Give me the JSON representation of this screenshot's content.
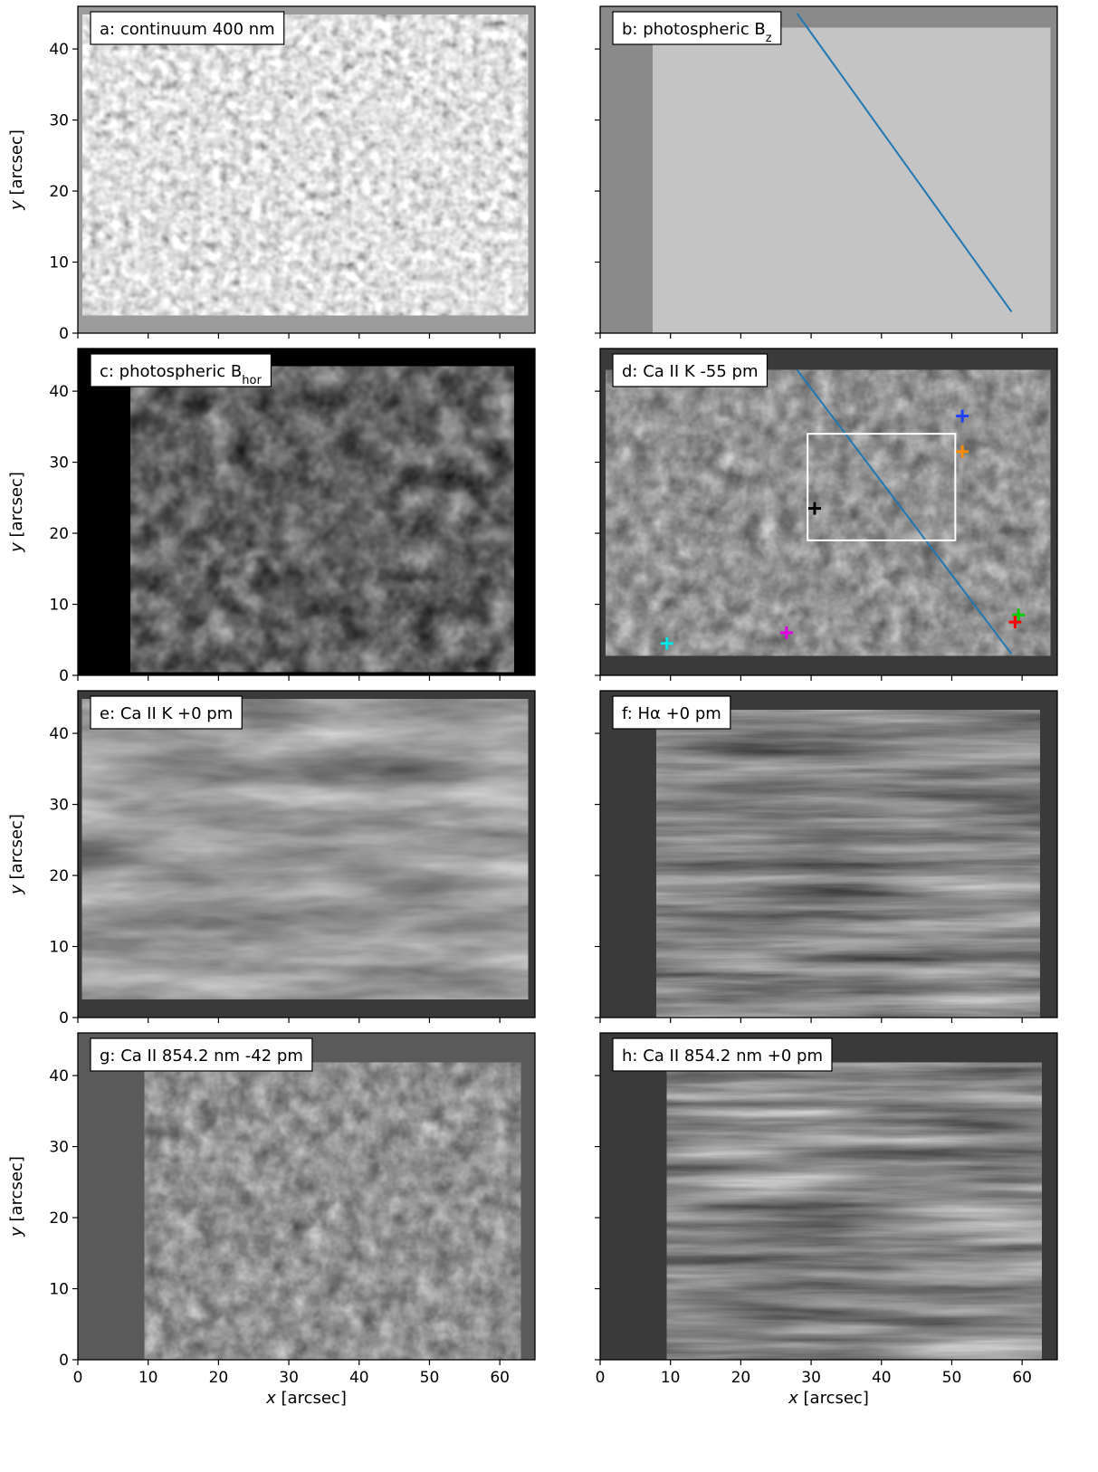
{
  "figure": {
    "axes": {
      "x": {
        "label_var": "x",
        "label_unit": " [arcsec]",
        "range": [
          0,
          65
        ],
        "ticks": [
          0,
          10,
          20,
          30,
          40,
          50,
          60
        ]
      },
      "y": {
        "label_var": "y",
        "label_unit": " [arcsec]",
        "range": [
          0,
          46
        ],
        "ticks": [
          0,
          10,
          20,
          30,
          40
        ]
      }
    },
    "panels": [
      {
        "id": "a",
        "label": "a: continuum  400 nm",
        "label_sub": "",
        "background": "#9c9c9c",
        "image_tone": "granulation"
      },
      {
        "id": "b",
        "label": "b: photospheric B",
        "label_sub": "z",
        "background": "#8a8a8a",
        "image_tone": "magnetogram",
        "slit_line": {
          "x1": 28,
          "y1": 45,
          "x2": 58.5,
          "y2": 3,
          "color": "#1f77b4"
        }
      },
      {
        "id": "c",
        "label": "c: photospheric B",
        "label_sub": "hor",
        "background": "#000000",
        "image_tone": "dark-network"
      },
      {
        "id": "d",
        "label": "d: Ca II K  -55 pm",
        "label_sub": "",
        "background": "#3a3a3a",
        "image_tone": "chromosphere-wing",
        "slit_line": {
          "x1": 28,
          "y1": 43,
          "x2": 58.5,
          "y2": 3,
          "color": "#1f77b4"
        },
        "box": {
          "x0": 29.5,
          "y0": 19,
          "x1": 50.5,
          "y1": 34
        },
        "markers": [
          {
            "x": 51.5,
            "y": 36.5,
            "color": "#1f3fff"
          },
          {
            "x": 51.5,
            "y": 31.5,
            "color": "#ff8c00"
          },
          {
            "x": 30.5,
            "y": 23.5,
            "color": "#000000"
          },
          {
            "x": 59.5,
            "y": 8.5,
            "color": "#00cc00"
          },
          {
            "x": 59,
            "y": 7.5,
            "color": "#ff0000"
          },
          {
            "x": 9.5,
            "y": 4.5,
            "color": "#00e5e5"
          },
          {
            "x": 26.5,
            "y": 6,
            "color": "#e000e0"
          }
        ]
      },
      {
        "id": "e",
        "label": "e: Ca II K   +0 pm",
        "label_sub": "",
        "background": "#3a3a3a",
        "image_tone": "chromosphere-core"
      },
      {
        "id": "f",
        "label": "f: Hα  +0 pm",
        "label_sub": "",
        "background": "#3a3a3a",
        "image_tone": "fibrils"
      },
      {
        "id": "g",
        "label": "g: Ca II 854.2 nm  -42 pm",
        "label_sub": "",
        "background": "#5a5a5a",
        "image_tone": "chromosphere-wing"
      },
      {
        "id": "h",
        "label": "h: Ca II 854.2 nm  +0 pm",
        "label_sub": "",
        "background": "#3a3a3a",
        "image_tone": "fibrils"
      }
    ]
  }
}
